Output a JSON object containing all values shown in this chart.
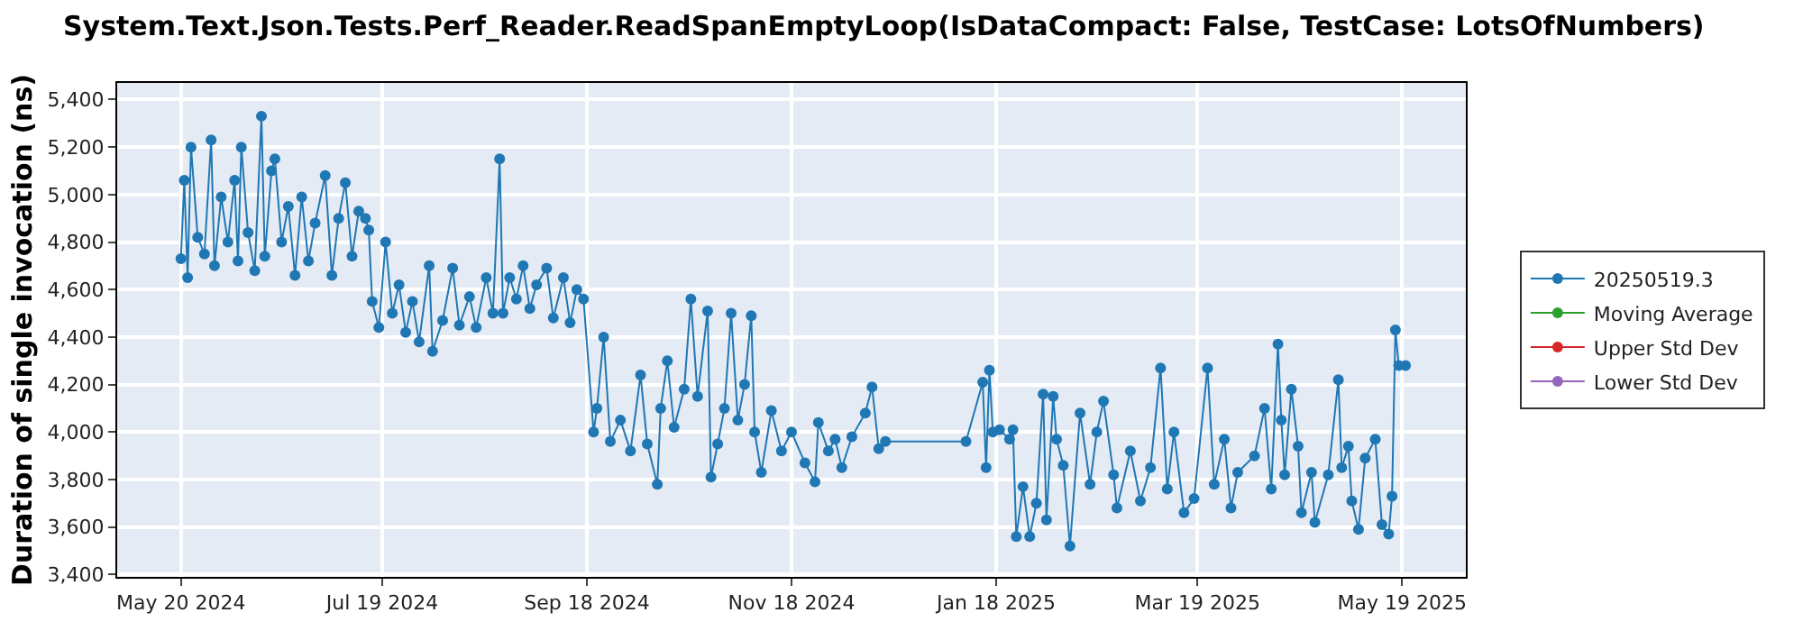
{
  "chart_data": {
    "type": "line",
    "title": "System.Text.Json.Tests.Perf_Reader.ReadSpanEmptyLoop(IsDataCompact: False, TestCase: LotsOfNumbers)",
    "ylabel": "Duration of single invocation (ns)",
    "x": [
      "2024-05-20",
      "2024-05-21",
      "2024-05-22",
      "2024-05-23",
      "2024-05-25",
      "2024-05-27",
      "2024-05-29",
      "2024-05-30",
      "2024-06-01",
      "2024-06-03",
      "2024-06-05",
      "2024-06-06",
      "2024-06-07",
      "2024-06-09",
      "2024-06-11",
      "2024-06-13",
      "2024-06-14",
      "2024-06-16",
      "2024-06-17",
      "2024-06-19",
      "2024-06-21",
      "2024-06-23",
      "2024-06-25",
      "2024-06-27",
      "2024-06-29",
      "2024-07-02",
      "2024-07-04",
      "2024-07-06",
      "2024-07-08",
      "2024-07-10",
      "2024-07-12",
      "2024-07-14",
      "2024-07-15",
      "2024-07-16",
      "2024-07-18",
      "2024-07-20",
      "2024-07-22",
      "2024-07-24",
      "2024-07-26",
      "2024-07-28",
      "2024-07-30",
      "2024-08-02",
      "2024-08-03",
      "2024-08-06",
      "2024-08-09",
      "2024-08-11",
      "2024-08-14",
      "2024-08-16",
      "2024-08-19",
      "2024-08-21",
      "2024-08-23",
      "2024-08-24",
      "2024-08-26",
      "2024-08-28",
      "2024-08-30",
      "2024-09-01",
      "2024-09-03",
      "2024-09-06",
      "2024-09-08",
      "2024-09-11",
      "2024-09-13",
      "2024-09-15",
      "2024-09-17",
      "2024-09-20",
      "2024-09-21",
      "2024-09-23",
      "2024-09-25",
      "2024-09-28",
      "2024-10-01",
      "2024-10-04",
      "2024-10-06",
      "2024-10-09",
      "2024-10-10",
      "2024-10-12",
      "2024-10-14",
      "2024-10-17",
      "2024-10-19",
      "2024-10-21",
      "2024-10-24",
      "2024-10-25",
      "2024-10-27",
      "2024-10-29",
      "2024-10-31",
      "2024-11-02",
      "2024-11-04",
      "2024-11-06",
      "2024-11-07",
      "2024-11-09",
      "2024-11-12",
      "2024-11-15",
      "2024-11-18",
      "2024-11-22",
      "2024-11-25",
      "2024-11-26",
      "2024-11-29",
      "2024-12-01",
      "2024-12-03",
      "2024-12-06",
      "2024-12-10",
      "2024-12-12",
      "2024-12-14",
      "2024-12-16",
      "2025-01-09",
      "2025-01-14",
      "2025-01-15",
      "2025-01-16",
      "2025-01-17",
      "2025-01-19",
      "2025-01-22",
      "2025-01-23",
      "2025-01-24",
      "2025-01-26",
      "2025-01-28",
      "2025-01-30",
      "2025-02-01",
      "2025-02-02",
      "2025-02-04",
      "2025-02-05",
      "2025-02-07",
      "2025-02-09",
      "2025-02-12",
      "2025-02-15",
      "2025-02-17",
      "2025-02-19",
      "2025-02-22",
      "2025-02-23",
      "2025-02-27",
      "2025-03-02",
      "2025-03-05",
      "2025-03-08",
      "2025-03-10",
      "2025-03-12",
      "2025-03-15",
      "2025-03-18",
      "2025-03-22",
      "2025-03-24",
      "2025-03-27",
      "2025-03-29",
      "2025-03-31",
      "2025-04-05",
      "2025-04-08",
      "2025-04-10",
      "2025-04-12",
      "2025-04-13",
      "2025-04-14",
      "2025-04-16",
      "2025-04-18",
      "2025-04-19",
      "2025-04-22",
      "2025-04-23",
      "2025-04-27",
      "2025-04-30",
      "2025-05-01",
      "2025-05-03",
      "2025-05-04",
      "2025-05-06",
      "2025-05-08",
      "2025-05-11",
      "2025-05-13",
      "2025-05-15",
      "2025-05-16",
      "2025-05-17",
      "2025-05-18",
      "2025-05-20"
    ],
    "series": [
      {
        "name": "20250519.3",
        "color": "#1f77b4",
        "values": [
          4730,
          5060,
          4650,
          5200,
          4820,
          4750,
          5230,
          4700,
          4990,
          4800,
          5060,
          4720,
          5200,
          4840,
          4680,
          5330,
          4740,
          5100,
          5150,
          4800,
          4950,
          4660,
          4990,
          4720,
          4880,
          5080,
          4660,
          4900,
          5050,
          4740,
          4930,
          4900,
          4850,
          4550,
          4440,
          4800,
          4500,
          4620,
          4420,
          4550,
          4380,
          4700,
          4340,
          4470,
          4690,
          4450,
          4570,
          4440,
          4650,
          4500,
          5150,
          4500,
          4650,
          4560,
          4700,
          4520,
          4620,
          4690,
          4480,
          4650,
          4460,
          4600,
          4560,
          4000,
          4100,
          4400,
          3960,
          4050,
          3920,
          4240,
          3950,
          3780,
          4100,
          4300,
          4020,
          4180,
          4560,
          4150,
          4510,
          3810,
          3950,
          4100,
          4500,
          4050,
          4200,
          4490,
          4000,
          3830,
          4090,
          3920,
          4000,
          3870,
          3790,
          4040,
          3920,
          3970,
          3850,
          3980,
          4080,
          4190,
          3930,
          3960,
          3960,
          4210,
          3850,
          4260,
          4000,
          4010,
          3970,
          4010,
          3560,
          3770,
          3560,
          3700,
          4160,
          3630,
          4150,
          3970,
          3860,
          3520,
          4080,
          3780,
          4000,
          4130,
          3820,
          3680,
          3920,
          3710,
          3850,
          4270,
          3760,
          4000,
          3660,
          3720,
          4270,
          3780,
          3970,
          3680,
          3830,
          3900,
          4100,
          3760,
          4370,
          4050,
          3820,
          4180,
          3940,
          3660,
          3830,
          3620,
          3820,
          4220,
          3850,
          3940,
          3710,
          3590,
          3890,
          3970,
          3610,
          3570,
          3730,
          4430,
          4280,
          4280
        ]
      },
      {
        "name": "Moving Average",
        "color": "#2ca02c",
        "values": [
          null,
          null,
          null,
          null,
          null,
          null,
          null,
          null,
          null,
          null,
          null,
          null,
          null,
          null,
          null,
          null,
          null,
          null,
          null,
          null,
          null,
          null,
          null,
          null,
          null,
          null,
          null,
          null,
          null,
          null,
          null,
          null,
          null,
          null,
          null,
          null,
          null,
          null,
          null,
          null,
          null,
          null,
          null,
          null,
          null,
          null,
          null,
          null,
          null,
          null,
          null,
          null,
          null,
          null,
          null,
          null,
          null,
          null,
          null,
          null,
          null,
          null,
          null,
          null,
          null,
          null,
          null,
          null,
          null,
          null,
          null,
          null,
          null,
          null,
          null,
          null,
          null,
          null,
          null,
          null,
          null,
          null,
          null,
          null,
          null,
          null,
          null,
          null,
          null,
          null,
          null,
          null,
          null,
          null,
          null,
          null,
          null,
          null,
          null,
          null,
          null,
          null,
          null,
          null,
          null,
          null,
          null,
          null,
          null,
          null,
          null,
          null,
          null,
          null,
          null,
          null,
          null,
          null,
          null,
          null,
          null,
          null,
          null,
          null,
          null,
          null,
          null,
          null,
          null,
          null,
          null,
          null,
          null,
          null,
          null,
          null,
          null,
          null,
          null,
          null,
          null,
          null,
          null,
          null,
          null,
          null,
          null,
          null,
          null,
          null,
          null,
          null,
          null,
          null,
          null,
          null,
          null,
          null,
          null,
          null,
          null,
          null,
          null,
          null
        ]
      },
      {
        "name": "Upper Std Dev",
        "color": "#d62728",
        "values": [
          null,
          null,
          null,
          null,
          null,
          null,
          null,
          null,
          null,
          null,
          null,
          null,
          null,
          null,
          null,
          null,
          null,
          null,
          null,
          null,
          null,
          null,
          null,
          null,
          null,
          null,
          null,
          null,
          null,
          null,
          null,
          null,
          null,
          null,
          null,
          null,
          null,
          null,
          null,
          null,
          null,
          null,
          null,
          null,
          null,
          null,
          null,
          null,
          null,
          null,
          null,
          null,
          null,
          null,
          null,
          null,
          null,
          null,
          null,
          null,
          null,
          null,
          null,
          null,
          null,
          null,
          null,
          null,
          null,
          null,
          null,
          null,
          null,
          null,
          null,
          null,
          null,
          null,
          null,
          null,
          null,
          null,
          null,
          null,
          null,
          null,
          null,
          null,
          null,
          null,
          null,
          null,
          null,
          null,
          null,
          null,
          null,
          null,
          null,
          null,
          null,
          null,
          null,
          null,
          null,
          null,
          null,
          null,
          null,
          null,
          null,
          null,
          null,
          null,
          null,
          null,
          null,
          null,
          null,
          null,
          null,
          null,
          null,
          null,
          null,
          null,
          null,
          null,
          null,
          null,
          null,
          null,
          null,
          null,
          null,
          null,
          null,
          null,
          null,
          null,
          null,
          null,
          null,
          null,
          null,
          null,
          null,
          null,
          null,
          null,
          null,
          null,
          null,
          null,
          null,
          null,
          null,
          null,
          null,
          null,
          null,
          null,
          null,
          null
        ]
      },
      {
        "name": "Lower Std Dev",
        "color": "#9467bd",
        "values": [
          null,
          null,
          null,
          null,
          null,
          null,
          null,
          null,
          null,
          null,
          null,
          null,
          null,
          null,
          null,
          null,
          null,
          null,
          null,
          null,
          null,
          null,
          null,
          null,
          null,
          null,
          null,
          null,
          null,
          null,
          null,
          null,
          null,
          null,
          null,
          null,
          null,
          null,
          null,
          null,
          null,
          null,
          null,
          null,
          null,
          null,
          null,
          null,
          null,
          null,
          null,
          null,
          null,
          null,
          null,
          null,
          null,
          null,
          null,
          null,
          null,
          null,
          null,
          null,
          null,
          null,
          null,
          null,
          null,
          null,
          null,
          null,
          null,
          null,
          null,
          null,
          null,
          null,
          null,
          null,
          null,
          null,
          null,
          null,
          null,
          null,
          null,
          null,
          null,
          null,
          null,
          null,
          null,
          null,
          null,
          null,
          null,
          null,
          null,
          null,
          null,
          null,
          null,
          null,
          null,
          null,
          null,
          null,
          null,
          null,
          null,
          null,
          null,
          null,
          null,
          null,
          null,
          null,
          null,
          null,
          null,
          null,
          null,
          null,
          null,
          null,
          null,
          null,
          null,
          null,
          null,
          null,
          null,
          null,
          null,
          null,
          null,
          null,
          null,
          null,
          null,
          null,
          null,
          null,
          null,
          null,
          null,
          null,
          null,
          null,
          null,
          null,
          null,
          null,
          null,
          null,
          null,
          null,
          null,
          null,
          null,
          null,
          null,
          null
        ]
      }
    ],
    "xlim": [
      "2024-05-01",
      "2025-06-07"
    ],
    "xticks": [
      {
        "value": "2024-05-20",
        "label": "May 20 2024"
      },
      {
        "value": "2024-07-19",
        "label": "Jul 19 2024"
      },
      {
        "value": "2024-09-18",
        "label": "Sep 18 2024"
      },
      {
        "value": "2024-11-18",
        "label": "Nov 18 2024"
      },
      {
        "value": "2025-01-18",
        "label": "Jan 18 2025"
      },
      {
        "value": "2025-03-19",
        "label": "Mar 19 2025"
      },
      {
        "value": "2025-05-19",
        "label": "May 19 2025"
      }
    ],
    "ylim": [
      3390,
      5470
    ],
    "yticks": [
      {
        "value": 3400,
        "label": "3,400"
      },
      {
        "value": 3600,
        "label": "3,600"
      },
      {
        "value": 3800,
        "label": "3,800"
      },
      {
        "value": 4000,
        "label": "4,000"
      },
      {
        "value": 4200,
        "label": "4,200"
      },
      {
        "value": 4400,
        "label": "4,400"
      },
      {
        "value": 4600,
        "label": "4,600"
      },
      {
        "value": 4800,
        "label": "4,800"
      },
      {
        "value": 5000,
        "label": "5,000"
      },
      {
        "value": 5200,
        "label": "5,200"
      },
      {
        "value": 5400,
        "label": "5,400"
      }
    ],
    "grid": true,
    "legend": "right",
    "marker": "circle",
    "line_style": "solid"
  }
}
